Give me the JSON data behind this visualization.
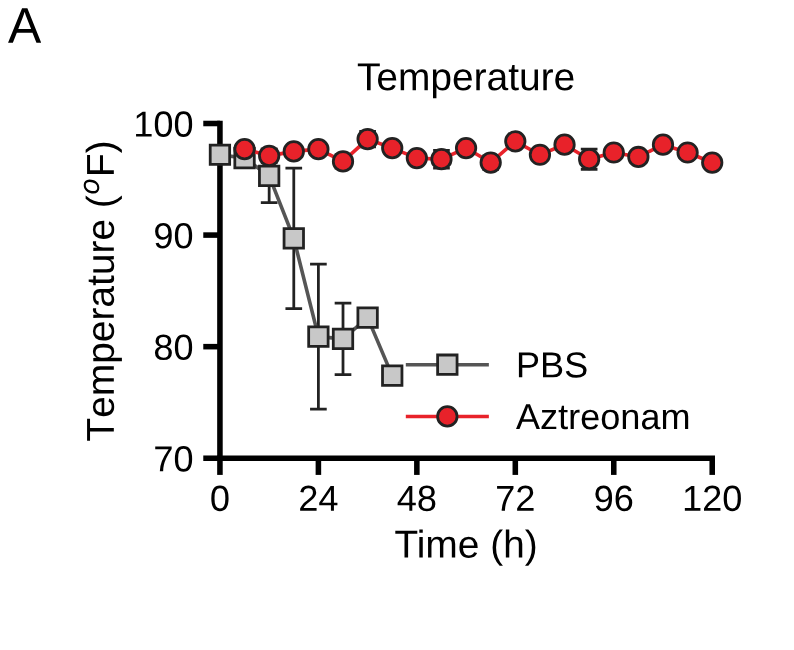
{
  "chart_data": {
    "type": "line",
    "title": "Temperature",
    "xlabel": "Time (h)",
    "ylabel": "Temperature ($^{o}$F)",
    "annotations": [
      "A"
    ],
    "xlim": [
      0,
      120
    ],
    "xticks": [
      0,
      24,
      48,
      72,
      96,
      120
    ],
    "ylim": [
      70,
      100
    ],
    "yticks": [
      70,
      80,
      90,
      100
    ],
    "grid": false,
    "legend": "bottom right",
    "line_style": "solid",
    "series": [
      {
        "name": "PBS",
        "color": "#c8c8c8",
        "marker": "square",
        "x": [
          0,
          6,
          12,
          18,
          24,
          30,
          36,
          42
        ],
        "values": [
          97.2,
          96.9,
          95.3,
          89.7,
          80.9,
          80.7,
          82.6,
          77.4
        ],
        "errors": [
          null,
          null,
          2.4,
          6.3,
          6.5,
          3.2,
          null,
          null
        ]
      },
      {
        "name": "Aztreonam",
        "color": "#e8222a",
        "marker": "circle",
        "x": [
          6,
          12,
          18,
          24,
          30,
          36,
          42,
          48,
          54,
          60,
          66,
          72,
          78,
          84,
          90,
          96,
          102,
          108,
          114,
          120
        ],
        "values": [
          97.7,
          97.1,
          97.5,
          97.7,
          96.6,
          98.6,
          97.8,
          96.9,
          96.8,
          97.8,
          96.5,
          98.4,
          97.2,
          98.1,
          96.8,
          97.4,
          97.0,
          98.1,
          97.4,
          96.5
        ],
        "errors": [
          null,
          0.6,
          null,
          null,
          0.6,
          0.7,
          null,
          null,
          0.8,
          null,
          0.6,
          null,
          null,
          null,
          0.9,
          null,
          null,
          null,
          null,
          null
        ]
      }
    ]
  }
}
